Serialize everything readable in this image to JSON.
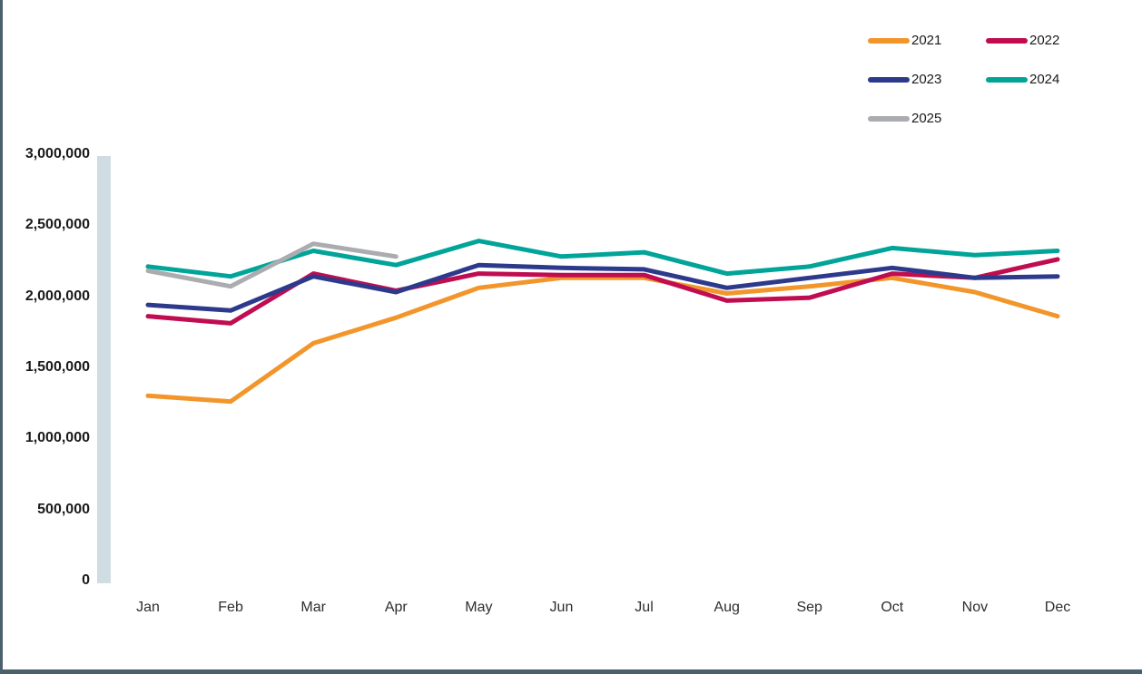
{
  "page": {
    "background": "#ffffff",
    "frame_border_color": "#4a616c",
    "axis_bar_color": "#cfdce2"
  },
  "chart_data": {
    "type": "line",
    "title": "",
    "xlabel": "",
    "ylabel": "",
    "categories": [
      "Jan",
      "Feb",
      "Mar",
      "Apr",
      "May",
      "Jun",
      "Jul",
      "Aug",
      "Sep",
      "Oct",
      "Nov",
      "Dec"
    ],
    "series": [
      {
        "name": "2021",
        "color": "#f2962b",
        "values": [
          1300000,
          1260000,
          1670000,
          1850000,
          2060000,
          2130000,
          2130000,
          2020000,
          2070000,
          2130000,
          2030000,
          1860000
        ]
      },
      {
        "name": "2022",
        "color": "#c00d51",
        "values": [
          1860000,
          1810000,
          2160000,
          2040000,
          2160000,
          2150000,
          2150000,
          1970000,
          1990000,
          2160000,
          2130000,
          2260000
        ]
      },
      {
        "name": "2023",
        "color": "#2d3a8c",
        "values": [
          1940000,
          1900000,
          2140000,
          2030000,
          2220000,
          2200000,
          2190000,
          2060000,
          2130000,
          2200000,
          2130000,
          2140000
        ]
      },
      {
        "name": "2024",
        "color": "#00a499",
        "values": [
          2210000,
          2140000,
          2320000,
          2220000,
          2390000,
          2280000,
          2310000,
          2160000,
          2210000,
          2340000,
          2290000,
          2320000
        ]
      },
      {
        "name": "2025",
        "color": "#abacb0",
        "values": [
          2180000,
          2070000,
          2370000,
          2280000
        ]
      }
    ],
    "ylim": [
      0,
      3000000
    ],
    "y_tick_interval": 500000,
    "y_tick_labels": [
      "0",
      "500,000",
      "1,000,000",
      "1,500,000",
      "2,000,000",
      "2,500,000",
      "3,000,000"
    ],
    "grid": false,
    "legend_position": "top-right",
    "line_width": 5,
    "line_cap": "round"
  }
}
